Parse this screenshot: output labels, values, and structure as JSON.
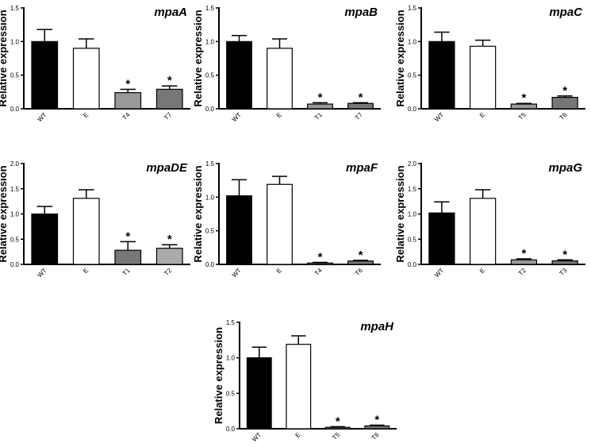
{
  "chart_data": [
    {
      "type": "bar",
      "title": "mpaA",
      "ylabel": "Relative expression",
      "ylim": [
        0,
        1.5
      ],
      "yticks": [
        "0.0",
        "0.5",
        "1.0",
        "1.5"
      ],
      "categories": [
        "WT",
        "E",
        "T4",
        "T7"
      ],
      "values": [
        1.0,
        0.9,
        0.24,
        0.29
      ],
      "errors": [
        0.18,
        0.14,
        0.05,
        0.05
      ],
      "fill": [
        "#000000",
        "#ffffff",
        "#999999",
        "#777777"
      ],
      "significance": [
        "",
        "",
        "*",
        "*"
      ]
    },
    {
      "type": "bar",
      "title": "mpaB",
      "ylabel": "Relative expression",
      "ylim": [
        0,
        1.5
      ],
      "yticks": [
        "0.0",
        "0.5",
        "1.0",
        "1.5"
      ],
      "categories": [
        "WT",
        "E",
        "T1",
        "T7"
      ],
      "values": [
        1.0,
        0.9,
        0.07,
        0.08
      ],
      "errors": [
        0.09,
        0.14,
        0.02,
        0.01
      ],
      "fill": [
        "#000000",
        "#ffffff",
        "#999999",
        "#777777"
      ],
      "significance": [
        "",
        "",
        "*",
        "*"
      ]
    },
    {
      "type": "bar",
      "title": "mpaC",
      "ylabel": "Relative expression",
      "ylim": [
        0,
        1.5
      ],
      "yticks": [
        "0.0",
        "0.5",
        "1.0",
        "1.5"
      ],
      "categories": [
        "WT",
        "E",
        "T5",
        "T6"
      ],
      "values": [
        1.0,
        0.93,
        0.07,
        0.17
      ],
      "errors": [
        0.14,
        0.09,
        0.01,
        0.02
      ],
      "fill": [
        "#000000",
        "#ffffff",
        "#999999",
        "#777777"
      ],
      "significance": [
        "",
        "",
        "*",
        "*"
      ]
    },
    {
      "type": "bar",
      "title": "mpaDE",
      "ylabel": "Relative expression",
      "ylim": [
        0,
        2.0
      ],
      "yticks": [
        "0.0",
        "0.5",
        "1.0",
        "1.5",
        "2.0"
      ],
      "categories": [
        "WT",
        "E",
        "T1",
        "T2"
      ],
      "values": [
        1.0,
        1.31,
        0.28,
        0.32
      ],
      "errors": [
        0.15,
        0.17,
        0.17,
        0.07
      ],
      "fill": [
        "#000000",
        "#ffffff",
        "#777777",
        "#aaaaaa"
      ],
      "significance": [
        "",
        "",
        "*",
        "*"
      ]
    },
    {
      "type": "bar",
      "title": "mpaF",
      "ylabel": "Relative expression",
      "ylim": [
        0,
        1.5
      ],
      "yticks": [
        "0.0",
        "0.5",
        "1.0",
        "1.5"
      ],
      "categories": [
        "WT",
        "E",
        "T4",
        "T6"
      ],
      "values": [
        1.02,
        1.19,
        0.02,
        0.05
      ],
      "errors": [
        0.24,
        0.12,
        0.01,
        0.01
      ],
      "fill": [
        "#000000",
        "#ffffff",
        "#999999",
        "#777777"
      ],
      "significance": [
        "",
        "",
        "*",
        "*"
      ]
    },
    {
      "type": "bar",
      "title": "mpaG",
      "ylabel": "Relative expression",
      "ylim": [
        0,
        2.0
      ],
      "yticks": [
        "0.0",
        "0.5",
        "1.0",
        "1.5",
        "2.0"
      ],
      "categories": [
        "WT",
        "E",
        "T2",
        "T3"
      ],
      "values": [
        1.02,
        1.31,
        0.09,
        0.07
      ],
      "errors": [
        0.22,
        0.17,
        0.02,
        0.02
      ],
      "fill": [
        "#000000",
        "#ffffff",
        "#999999",
        "#777777"
      ],
      "significance": [
        "",
        "",
        "*",
        "*"
      ]
    },
    {
      "type": "bar",
      "title": "mpaH",
      "ylabel": "Relative expression",
      "ylim": [
        0,
        1.5
      ],
      "yticks": [
        "0.0",
        "0.5",
        "1.0",
        "1.5"
      ],
      "categories": [
        "WT",
        "E",
        "T5",
        "T6"
      ],
      "values": [
        1.0,
        1.19,
        0.02,
        0.04
      ],
      "errors": [
        0.15,
        0.12,
        0.01,
        0.01
      ],
      "fill": [
        "#000000",
        "#ffffff",
        "#999999",
        "#777777"
      ],
      "significance": [
        "",
        "",
        "*",
        "*"
      ]
    }
  ]
}
